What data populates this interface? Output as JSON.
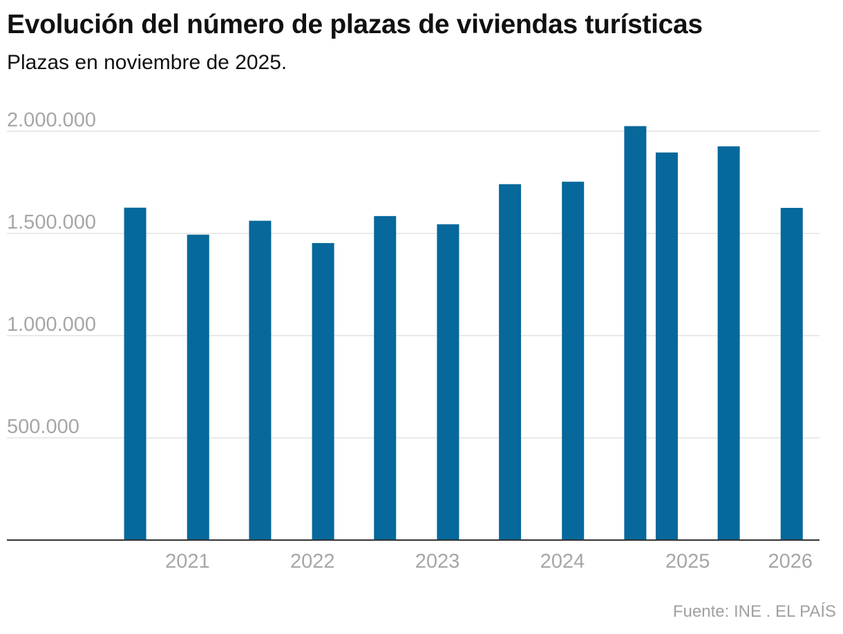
{
  "header": {
    "title": "Evolución del número de plazas de viviendas turísticas",
    "subtitle": "Plazas en noviembre de 2025."
  },
  "footer": {
    "source": "Fuente: INE . EL PAÍS"
  },
  "colors": {
    "bar": "#06689b",
    "grid": "#e2e2e2",
    "axis": "#333333",
    "tick_text": "#a6a6a6"
  },
  "chart_data": {
    "type": "bar",
    "title": "Evolución del número de plazas de viviendas turísticas",
    "subtitle": "Plazas en noviembre de 2025.",
    "xlabel": "",
    "ylabel": "",
    "ylim": [
      0,
      2000000
    ],
    "y_ticks": [
      500000,
      1000000,
      1500000,
      2000000
    ],
    "y_tick_labels": [
      "500.000",
      "1.000.000",
      "1.500.000",
      "2.000.000"
    ],
    "x_range": [
      "2020-05-01",
      "2026-01-01"
    ],
    "x_ticks": [
      "2021-01-01",
      "2022-01-01",
      "2023-01-01",
      "2024-01-01",
      "2025-01-01",
      "2026-01-01"
    ],
    "x_tick_labels": [
      "2021",
      "2022",
      "2023",
      "2024",
      "2025",
      "2026"
    ],
    "grid": true,
    "legend": "none",
    "series": [
      {
        "dates": [
          "2020-08",
          "2021-02",
          "2021-08",
          "2022-02",
          "2022-08",
          "2023-02",
          "2023-08",
          "2024-02",
          "2024-08",
          "2024-11",
          "2025-05",
          "2025-11"
        ],
        "values": [
          1626000,
          1494000,
          1562000,
          1453000,
          1585000,
          1545000,
          1741000,
          1753000,
          2025000,
          1896000,
          1926000,
          1625000
        ]
      }
    ]
  }
}
